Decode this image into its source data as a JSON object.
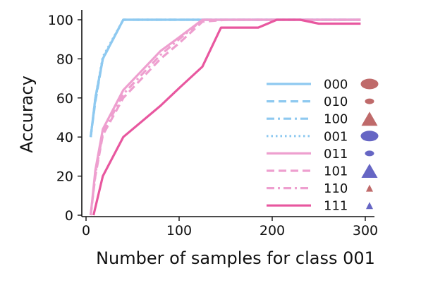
{
  "chart_data": {
    "type": "line",
    "title": "",
    "xlabel": "Number of samples for class 001",
    "ylabel": "Accuracy",
    "xlim": [
      -8,
      305
    ],
    "ylim": [
      0,
      104
    ],
    "x_ticks": [
      0,
      100,
      200,
      300
    ],
    "y_ticks": [
      0,
      20,
      40,
      60,
      80,
      100
    ],
    "grid": false,
    "legend_position": "right",
    "series": [
      {
        "name": "000",
        "color": "#8ec9f0",
        "dash": "solid",
        "x": [
          5,
          10,
          18,
          40,
          60,
          100,
          150,
          200,
          250,
          295
        ],
        "y": [
          40,
          60,
          80,
          100,
          100,
          100,
          100,
          100,
          100,
          100
        ]
      },
      {
        "name": "010",
        "color": "#8ec9f0",
        "dash": "dashed",
        "x": [
          5,
          10,
          18,
          40,
          60,
          100,
          150,
          200,
          250,
          295
        ],
        "y": [
          40,
          58,
          80,
          100,
          100,
          100,
          100,
          100,
          100,
          100
        ]
      },
      {
        "name": "100",
        "color": "#8ec9f0",
        "dash": "dashdot",
        "x": [
          5,
          10,
          18,
          40,
          60,
          100,
          150,
          200,
          250,
          295
        ],
        "y": [
          40,
          59,
          80,
          100,
          100,
          100,
          100,
          100,
          100,
          100
        ]
      },
      {
        "name": "001",
        "color": "#8ec9f0",
        "dash": "dotted",
        "x": [
          5,
          10,
          18,
          40,
          60,
          100,
          150,
          200,
          250,
          295
        ],
        "y": [
          40,
          60,
          81,
          100,
          100,
          100,
          100,
          100,
          100,
          100
        ]
      },
      {
        "name": "011",
        "color": "#ee9fcf",
        "dash": "solid",
        "x": [
          5,
          10,
          18,
          40,
          80,
          100,
          125,
          150,
          200,
          250,
          295
        ],
        "y": [
          0,
          23,
          44,
          64,
          84,
          91,
          100,
          100,
          100,
          100,
          100
        ]
      },
      {
        "name": "101",
        "color": "#ee9fcf",
        "dash": "dashed",
        "x": [
          5,
          10,
          18,
          40,
          80,
          100,
          125,
          150,
          200,
          250,
          295
        ],
        "y": [
          0,
          20,
          41,
          60,
          80,
          88,
          99,
          100,
          100,
          100,
          100
        ]
      },
      {
        "name": "110",
        "color": "#ee9fcf",
        "dash": "dashdot",
        "x": [
          5,
          10,
          18,
          40,
          80,
          100,
          125,
          150,
          200,
          250,
          295
        ],
        "y": [
          0,
          21,
          42,
          62,
          82,
          90,
          100,
          100,
          100,
          100,
          100
        ]
      },
      {
        "name": "111",
        "color": "#e8579f",
        "dash": "solid",
        "x": [
          8,
          18,
          40,
          80,
          100,
          125,
          145,
          185,
          205,
          230,
          250,
          295
        ],
        "y": [
          0,
          20,
          40,
          56,
          65,
          76,
          96,
          96,
          100,
          100,
          98,
          98
        ]
      }
    ],
    "legend_markers": [
      {
        "series": "000",
        "shape": "ellipse",
        "size": "large",
        "color": "#bf6a6a"
      },
      {
        "series": "010",
        "shape": "ellipse",
        "size": "small",
        "color": "#bf6a6a"
      },
      {
        "series": "100",
        "shape": "triangle",
        "size": "large",
        "color": "#bf6a6a"
      },
      {
        "series": "001",
        "shape": "ellipse",
        "size": "large",
        "color": "#6666c4"
      },
      {
        "series": "011",
        "shape": "ellipse",
        "size": "small",
        "color": "#6666c4"
      },
      {
        "series": "101",
        "shape": "triangle",
        "size": "large",
        "color": "#6666c4"
      },
      {
        "series": "110",
        "shape": "triangle",
        "size": "small",
        "color": "#bf6a6a"
      },
      {
        "series": "111",
        "shape": "triangle",
        "size": "small",
        "color": "#6666c4"
      }
    ]
  }
}
